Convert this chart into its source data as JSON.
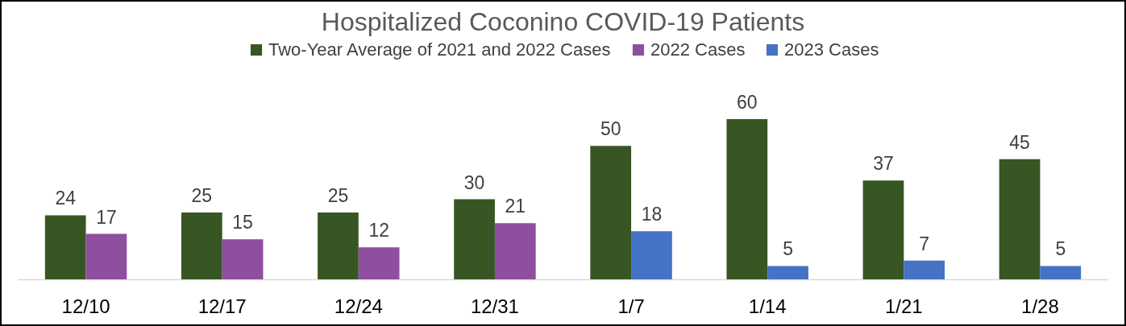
{
  "chart_data": {
    "type": "bar",
    "title": "Hospitalized Coconino COVID-19 Patients",
    "categories": [
      "12/10",
      "12/17",
      "12/24",
      "12/31",
      "1/7",
      "1/14",
      "1/21",
      "1/28"
    ],
    "series": [
      {
        "name": "Two-Year Average of 2021 and 2022 Cases",
        "color": "#375623",
        "values": [
          24,
          25,
          25,
          30,
          50,
          60,
          37,
          45
        ]
      },
      {
        "name": "2022 Cases",
        "color": "#8e4f9f",
        "values": [
          17,
          15,
          12,
          21,
          null,
          null,
          null,
          null
        ]
      },
      {
        "name": "2023 Cases",
        "color": "#4472c4",
        "values": [
          null,
          null,
          null,
          null,
          18,
          5,
          7,
          5
        ]
      }
    ],
    "data_labels": true,
    "legend": "top"
  }
}
